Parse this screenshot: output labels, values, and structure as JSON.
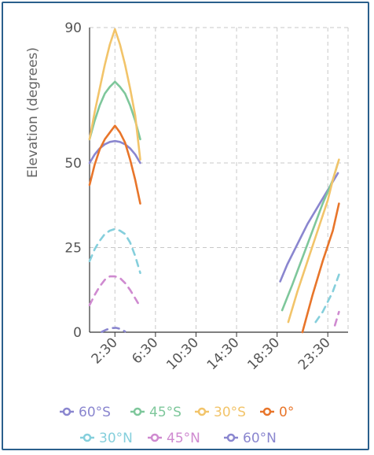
{
  "colors": {
    "s60": "#8a86cf",
    "s45": "#7ec79b",
    "s30": "#f2c46a",
    "eq": "#e8752a",
    "n30": "#85cfdc",
    "n45": "#cf8ad0",
    "n60": "#8a86cf",
    "grid": "#c8c8c8",
    "axis": "#333333",
    "frame": "#2a5f8c"
  },
  "chart_data": {
    "type": "line",
    "title": "",
    "xlabel": "",
    "ylabel": "Elevation (degrees)",
    "x_unit": "hours",
    "xlim": [
      0,
      25.5
    ],
    "ylim": [
      0,
      90
    ],
    "x_tick_labels": [
      {
        "x": 2.5,
        "label": "2:30"
      },
      {
        "x": 6.5,
        "label": "6:30"
      },
      {
        "x": 10.5,
        "label": "10:30"
      },
      {
        "x": 14.5,
        "label": "14:30"
      },
      {
        "x": 18.5,
        "label": "18:30"
      },
      {
        "x": 23.5,
        "label": "23:30"
      }
    ],
    "y_ticks": [
      0,
      25,
      50,
      90
    ],
    "grid": true,
    "legend_position": "bottom",
    "series": [
      {
        "name": "60°S",
        "color": "s60",
        "dash": false,
        "segments": [
          [
            [
              0,
              50
            ],
            [
              0.5,
              52.5
            ],
            [
              1.0,
              54.3
            ],
            [
              1.5,
              55.5
            ],
            [
              2.0,
              56.2
            ],
            [
              2.5,
              56.5
            ],
            [
              3.0,
              56.2
            ],
            [
              3.5,
              55.5
            ],
            [
              4.0,
              54.3
            ],
            [
              4.5,
              52.5
            ],
            [
              5.0,
              50
            ]
          ],
          [
            [
              18.8,
              15
            ],
            [
              19.5,
              20
            ],
            [
              20.5,
              26
            ],
            [
              21.5,
              32
            ],
            [
              22.5,
              37
            ],
            [
              23.5,
              42
            ],
            [
              24.5,
              47
            ]
          ]
        ]
      },
      {
        "name": "45°S",
        "color": "s45",
        "dash": false,
        "segments": [
          [
            [
              0,
              57
            ],
            [
              0.5,
              62.5
            ],
            [
              1.0,
              67
            ],
            [
              1.5,
              70.5
            ],
            [
              2.0,
              72.5
            ],
            [
              2.5,
              74
            ],
            [
              3.0,
              72.5
            ],
            [
              3.5,
              70.5
            ],
            [
              4.0,
              67
            ],
            [
              4.5,
              62.5
            ],
            [
              5.0,
              57
            ]
          ],
          [
            [
              19.0,
              6.5
            ],
            [
              20,
              14
            ],
            [
              21,
              22
            ],
            [
              22,
              30
            ],
            [
              23,
              38
            ],
            [
              24,
              45
            ],
            [
              24.5,
              50
            ]
          ]
        ]
      },
      {
        "name": "30°S",
        "color": "s30",
        "dash": false,
        "segments": [
          [
            [
              0,
              57
            ],
            [
              0.5,
              65
            ],
            [
              1.0,
              72
            ],
            [
              1.5,
              79
            ],
            [
              2.0,
              85
            ],
            [
              2.5,
              89.5
            ],
            [
              3.0,
              85
            ],
            [
              3.5,
              79
            ],
            [
              4.0,
              72
            ],
            [
              4.5,
              64
            ],
            [
              5.0,
              51
            ]
          ],
          [
            [
              19.6,
              3
            ],
            [
              20.5,
              12
            ],
            [
              21.5,
              21
            ],
            [
              22.5,
              30
            ],
            [
              23.5,
              39
            ],
            [
              24.0,
              45
            ],
            [
              24.6,
              51
            ]
          ]
        ]
      },
      {
        "name": "0°",
        "color": "eq",
        "dash": false,
        "segments": [
          [
            [
              0,
              43.5
            ],
            [
              0.5,
              49.5
            ],
            [
              1.0,
              54
            ],
            [
              1.5,
              57
            ],
            [
              2.0,
              59
            ],
            [
              2.5,
              61
            ],
            [
              3.0,
              59
            ],
            [
              3.5,
              56
            ],
            [
              4.0,
              51
            ],
            [
              4.5,
              45
            ],
            [
              5.0,
              38
            ]
          ],
          [
            [
              21.0,
              0
            ],
            [
              22,
              11
            ],
            [
              23,
              21
            ],
            [
              24,
              30
            ],
            [
              24.6,
              38
            ]
          ]
        ]
      },
      {
        "name": "30°N",
        "color": "n30",
        "dash": true,
        "segments": [
          [
            [
              0,
              21
            ],
            [
              0.5,
              24.5
            ],
            [
              1.0,
              27
            ],
            [
              1.5,
              29
            ],
            [
              2.0,
              30
            ],
            [
              2.5,
              30.5
            ],
            [
              3.0,
              30
            ],
            [
              3.5,
              29
            ],
            [
              4.0,
              26.5
            ],
            [
              4.5,
              22.5
            ],
            [
              5.0,
              17.5
            ]
          ],
          [
            [
              22.3,
              3
            ],
            [
              23,
              6
            ],
            [
              24,
              12
            ],
            [
              24.6,
              17
            ]
          ]
        ]
      },
      {
        "name": "45°N",
        "color": "n45",
        "dash": true,
        "segments": [
          [
            [
              0,
              8
            ],
            [
              0.5,
              11
            ],
            [
              1.0,
              13.5
            ],
            [
              1.5,
              15.5
            ],
            [
              2.0,
              16.5
            ],
            [
              2.5,
              16.5
            ],
            [
              3.0,
              16
            ],
            [
              3.5,
              14.5
            ],
            [
              4.0,
              12.5
            ],
            [
              4.5,
              10
            ],
            [
              5.0,
              7.5
            ]
          ],
          [
            [
              24.2,
              2
            ],
            [
              24.6,
              6
            ]
          ]
        ]
      },
      {
        "name": "60°N",
        "color": "n60",
        "dash": true,
        "segments": [
          [
            [
              1.2,
              0.1
            ],
            [
              1.7,
              0.8
            ],
            [
              2.2,
              1.2
            ],
            [
              2.6,
              1.3
            ],
            [
              3.0,
              1.0
            ],
            [
              3.5,
              0.2
            ]
          ]
        ]
      }
    ]
  }
}
